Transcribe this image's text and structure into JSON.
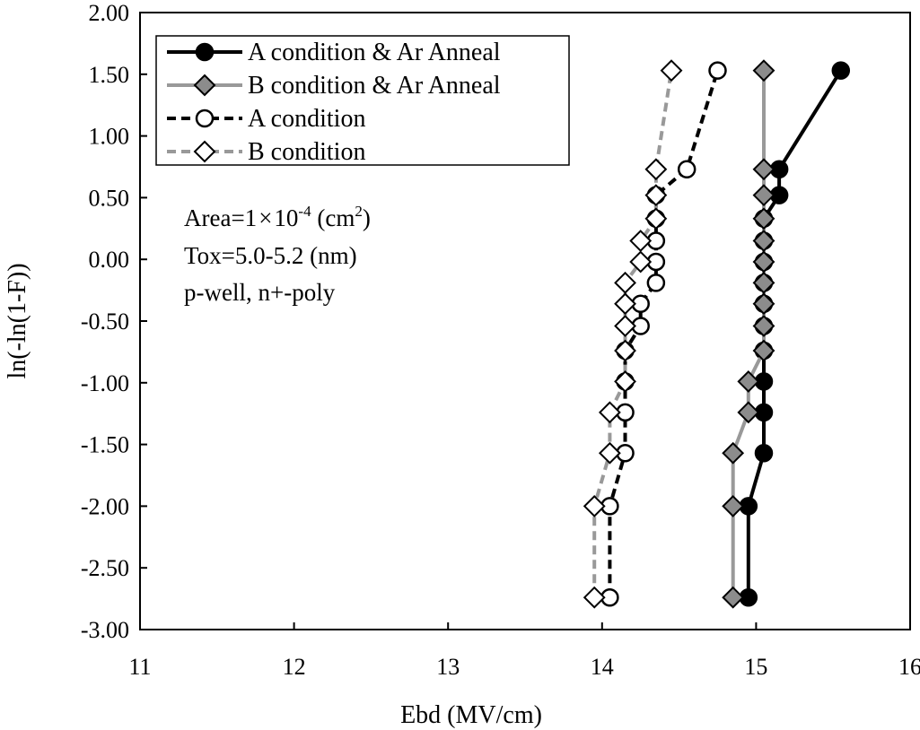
{
  "chart_data": {
    "type": "line",
    "title": "",
    "xlabel": "Ebd (MV/cm)",
    "ylabel": "ln(-ln(1-F))",
    "xlim": [
      11,
      16
    ],
    "ylim": [
      -3.0,
      2.0
    ],
    "x_ticks": [
      "11",
      "12",
      "13",
      "14",
      "15",
      "16"
    ],
    "y_ticks": [
      "2.00",
      "1.50",
      "1.00",
      "0.50",
      "0.00",
      "-0.50",
      "-1.00",
      "-1.50",
      "-2.00",
      "-2.50",
      "-3.00"
    ],
    "legend_position": "top-left",
    "annotations": {
      "area_prefix": "Area=1",
      "area_times": "×",
      "area_ten": "10",
      "area_exp": "-4",
      "area_unit_open": " (cm",
      "area_unit_exp": "2",
      "area_unit_close": ")",
      "tox": "Tox=5.0-5.2 (nm)",
      "well": "p-well, n+-poly"
    },
    "series": [
      {
        "name": "A condition & Ar Anneal",
        "color": "#000000",
        "dash": "solid",
        "marker": "circle",
        "marker_fill": "#000000",
        "points": [
          [
            14.95,
            -2.74
          ],
          [
            14.95,
            -2.0
          ],
          [
            15.05,
            -1.57
          ],
          [
            15.05,
            -1.24
          ],
          [
            15.05,
            -0.99
          ],
          [
            15.05,
            -0.74
          ],
          [
            15.05,
            -0.54
          ],
          [
            15.05,
            -0.36
          ],
          [
            15.05,
            -0.19
          ],
          [
            15.05,
            -0.02
          ],
          [
            15.05,
            0.15
          ],
          [
            15.05,
            0.33
          ],
          [
            15.15,
            0.52
          ],
          [
            15.15,
            0.73
          ],
          [
            15.55,
            1.53
          ]
        ]
      },
      {
        "name": "B condition & Ar Anneal",
        "color": "#999999",
        "dash": "solid",
        "marker": "diamond",
        "marker_fill": "#8c8c8c",
        "points": [
          [
            14.85,
            -2.74
          ],
          [
            14.85,
            -2.0
          ],
          [
            14.85,
            -1.57
          ],
          [
            14.95,
            -1.24
          ],
          [
            14.95,
            -0.99
          ],
          [
            15.05,
            -0.74
          ],
          [
            15.05,
            -0.54
          ],
          [
            15.05,
            -0.36
          ],
          [
            15.05,
            -0.19
          ],
          [
            15.05,
            -0.02
          ],
          [
            15.05,
            0.15
          ],
          [
            15.05,
            0.33
          ],
          [
            15.05,
            0.52
          ],
          [
            15.05,
            0.73
          ],
          [
            15.05,
            1.53
          ]
        ]
      },
      {
        "name": "A condition",
        "color": "#000000",
        "dash": "dashed",
        "marker": "circle",
        "marker_fill": "#ffffff",
        "points": [
          [
            14.05,
            -2.74
          ],
          [
            14.05,
            -2.0
          ],
          [
            14.15,
            -1.57
          ],
          [
            14.15,
            -1.24
          ],
          [
            14.15,
            -0.99
          ],
          [
            14.15,
            -0.74
          ],
          [
            14.25,
            -0.54
          ],
          [
            14.25,
            -0.36
          ],
          [
            14.35,
            -0.19
          ],
          [
            14.35,
            -0.02
          ],
          [
            14.35,
            0.15
          ],
          [
            14.35,
            0.33
          ],
          [
            14.35,
            0.52
          ],
          [
            14.55,
            0.73
          ],
          [
            14.75,
            1.53
          ]
        ]
      },
      {
        "name": "B condition",
        "color": "#999999",
        "dash": "dashed",
        "marker": "diamond",
        "marker_fill": "#ffffff",
        "points": [
          [
            13.95,
            -2.74
          ],
          [
            13.95,
            -2.0
          ],
          [
            14.05,
            -1.57
          ],
          [
            14.05,
            -1.24
          ],
          [
            14.15,
            -0.99
          ],
          [
            14.15,
            -0.74
          ],
          [
            14.15,
            -0.54
          ],
          [
            14.15,
            -0.36
          ],
          [
            14.15,
            -0.19
          ],
          [
            14.25,
            -0.02
          ],
          [
            14.25,
            0.15
          ],
          [
            14.35,
            0.33
          ],
          [
            14.35,
            0.52
          ],
          [
            14.35,
            0.73
          ],
          [
            14.45,
            1.53
          ]
        ]
      }
    ]
  }
}
